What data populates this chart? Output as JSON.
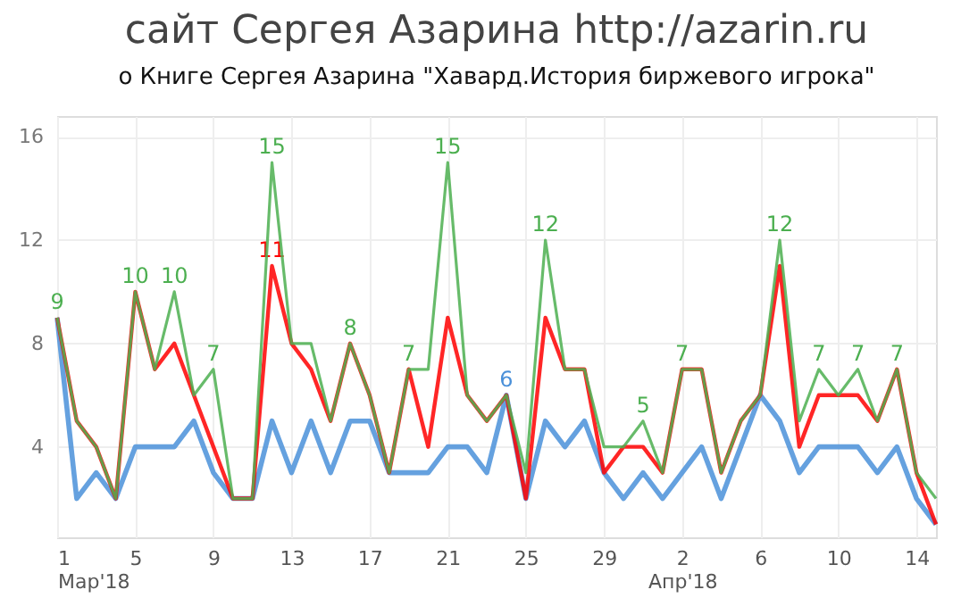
{
  "chart_data": {
    "type": "line",
    "title": "сайт Сергея Азарина http://azarin.ru",
    "subtitle": "о Книге Сергея Азарина \"Хавард.История биржевого игрока\"",
    "x": [
      "2018-03-01",
      "2018-03-02",
      "2018-03-03",
      "2018-03-04",
      "2018-03-05",
      "2018-03-06",
      "2018-03-07",
      "2018-03-08",
      "2018-03-09",
      "2018-03-10",
      "2018-03-11",
      "2018-03-12",
      "2018-03-13",
      "2018-03-14",
      "2018-03-15",
      "2018-03-16",
      "2018-03-17",
      "2018-03-18",
      "2018-03-19",
      "2018-03-20",
      "2018-03-21",
      "2018-03-22",
      "2018-03-23",
      "2018-03-24",
      "2018-03-25",
      "2018-03-26",
      "2018-03-27",
      "2018-03-28",
      "2018-03-29",
      "2018-03-30",
      "2018-03-31",
      "2018-04-01",
      "2018-04-02",
      "2018-04-03",
      "2018-04-04",
      "2018-04-05",
      "2018-04-06",
      "2018-04-07",
      "2018-04-08",
      "2018-04-09",
      "2018-04-10",
      "2018-04-11",
      "2018-04-12",
      "2018-04-13",
      "2018-04-14",
      "2018-04-15"
    ],
    "series": [
      {
        "color": "#4a90d9",
        "values": [
          9,
          2,
          3,
          2,
          4,
          4,
          4,
          5,
          3,
          2,
          2,
          5,
          3,
          5,
          3,
          5,
          5,
          3,
          3,
          3,
          4,
          4,
          3,
          6,
          2,
          5,
          4,
          5,
          3,
          2,
          3,
          2,
          3,
          4,
          2,
          4,
          6,
          5,
          3,
          4,
          4,
          4,
          3,
          4,
          2,
          1
        ],
        "value_labels": [
          null,
          null,
          null,
          null,
          null,
          null,
          null,
          null,
          null,
          null,
          null,
          null,
          null,
          null,
          null,
          null,
          null,
          null,
          null,
          null,
          null,
          null,
          null,
          "6",
          null,
          null,
          null,
          null,
          null,
          null,
          null,
          null,
          null,
          null,
          null,
          null,
          null,
          null,
          null,
          null,
          null,
          null,
          null,
          null,
          null,
          null
        ]
      },
      {
        "color": "#ff0000",
        "values": [
          9,
          5,
          4,
          2,
          10,
          7,
          8,
          6,
          4,
          2,
          2,
          11,
          8,
          7,
          5,
          8,
          6,
          3,
          7,
          4,
          9,
          6,
          5,
          6,
          2,
          9,
          7,
          7,
          3,
          4,
          4,
          3,
          7,
          7,
          3,
          5,
          6,
          11,
          4,
          6,
          6,
          6,
          5,
          7,
          3,
          1
        ],
        "value_labels": [
          null,
          null,
          null,
          null,
          null,
          null,
          null,
          null,
          null,
          null,
          null,
          "11",
          null,
          null,
          null,
          null,
          null,
          null,
          null,
          null,
          null,
          null,
          null,
          null,
          null,
          null,
          null,
          null,
          null,
          null,
          null,
          null,
          null,
          null,
          null,
          null,
          null,
          null,
          null,
          null,
          null,
          null,
          null,
          null,
          null,
          null
        ]
      },
      {
        "color": "#4caf50",
        "values": [
          9,
          5,
          4,
          2,
          10,
          7,
          10,
          6,
          7,
          2,
          2,
          15,
          8,
          8,
          5,
          8,
          6,
          3,
          7,
          7,
          15,
          6,
          5,
          6,
          3,
          12,
          7,
          7,
          4,
          4,
          5,
          3,
          7,
          7,
          3,
          5,
          6,
          12,
          5,
          7,
          6,
          7,
          5,
          7,
          3,
          2
        ],
        "value_labels": [
          "9",
          null,
          null,
          null,
          "10",
          null,
          "10",
          null,
          "7",
          null,
          null,
          "15",
          null,
          null,
          null,
          "8",
          null,
          null,
          "7",
          null,
          "15",
          null,
          null,
          null,
          null,
          "12",
          null,
          null,
          null,
          null,
          "5",
          null,
          "7",
          null,
          null,
          null,
          null,
          "12",
          null,
          "7",
          null,
          "7",
          null,
          "7",
          null,
          null
        ]
      }
    ],
    "xlim": [
      "2018-03-01",
      "2018-04-15"
    ],
    "xticks": [
      {
        "value": "2018-03-01",
        "label": "1\nМар'18"
      },
      {
        "value": "2018-03-05",
        "label": "5"
      },
      {
        "value": "2018-03-09",
        "label": "9"
      },
      {
        "value": "2018-03-13",
        "label": "13"
      },
      {
        "value": "2018-03-17",
        "label": "17"
      },
      {
        "value": "2018-03-21",
        "label": "21"
      },
      {
        "value": "2018-03-25",
        "label": "25"
      },
      {
        "value": "2018-03-29",
        "label": "29"
      },
      {
        "value": "2018-04-02",
        "label": "2\nАпр'18"
      },
      {
        "value": "2018-04-06",
        "label": "6"
      },
      {
        "value": "2018-04-10",
        "label": "10"
      },
      {
        "value": "2018-04-14",
        "label": "14"
      }
    ],
    "ylim": [
      0.5,
      16.8
    ],
    "yticks": [
      4,
      8,
      12,
      16
    ],
    "grid": true,
    "marker": "none",
    "line_style": "solid"
  }
}
